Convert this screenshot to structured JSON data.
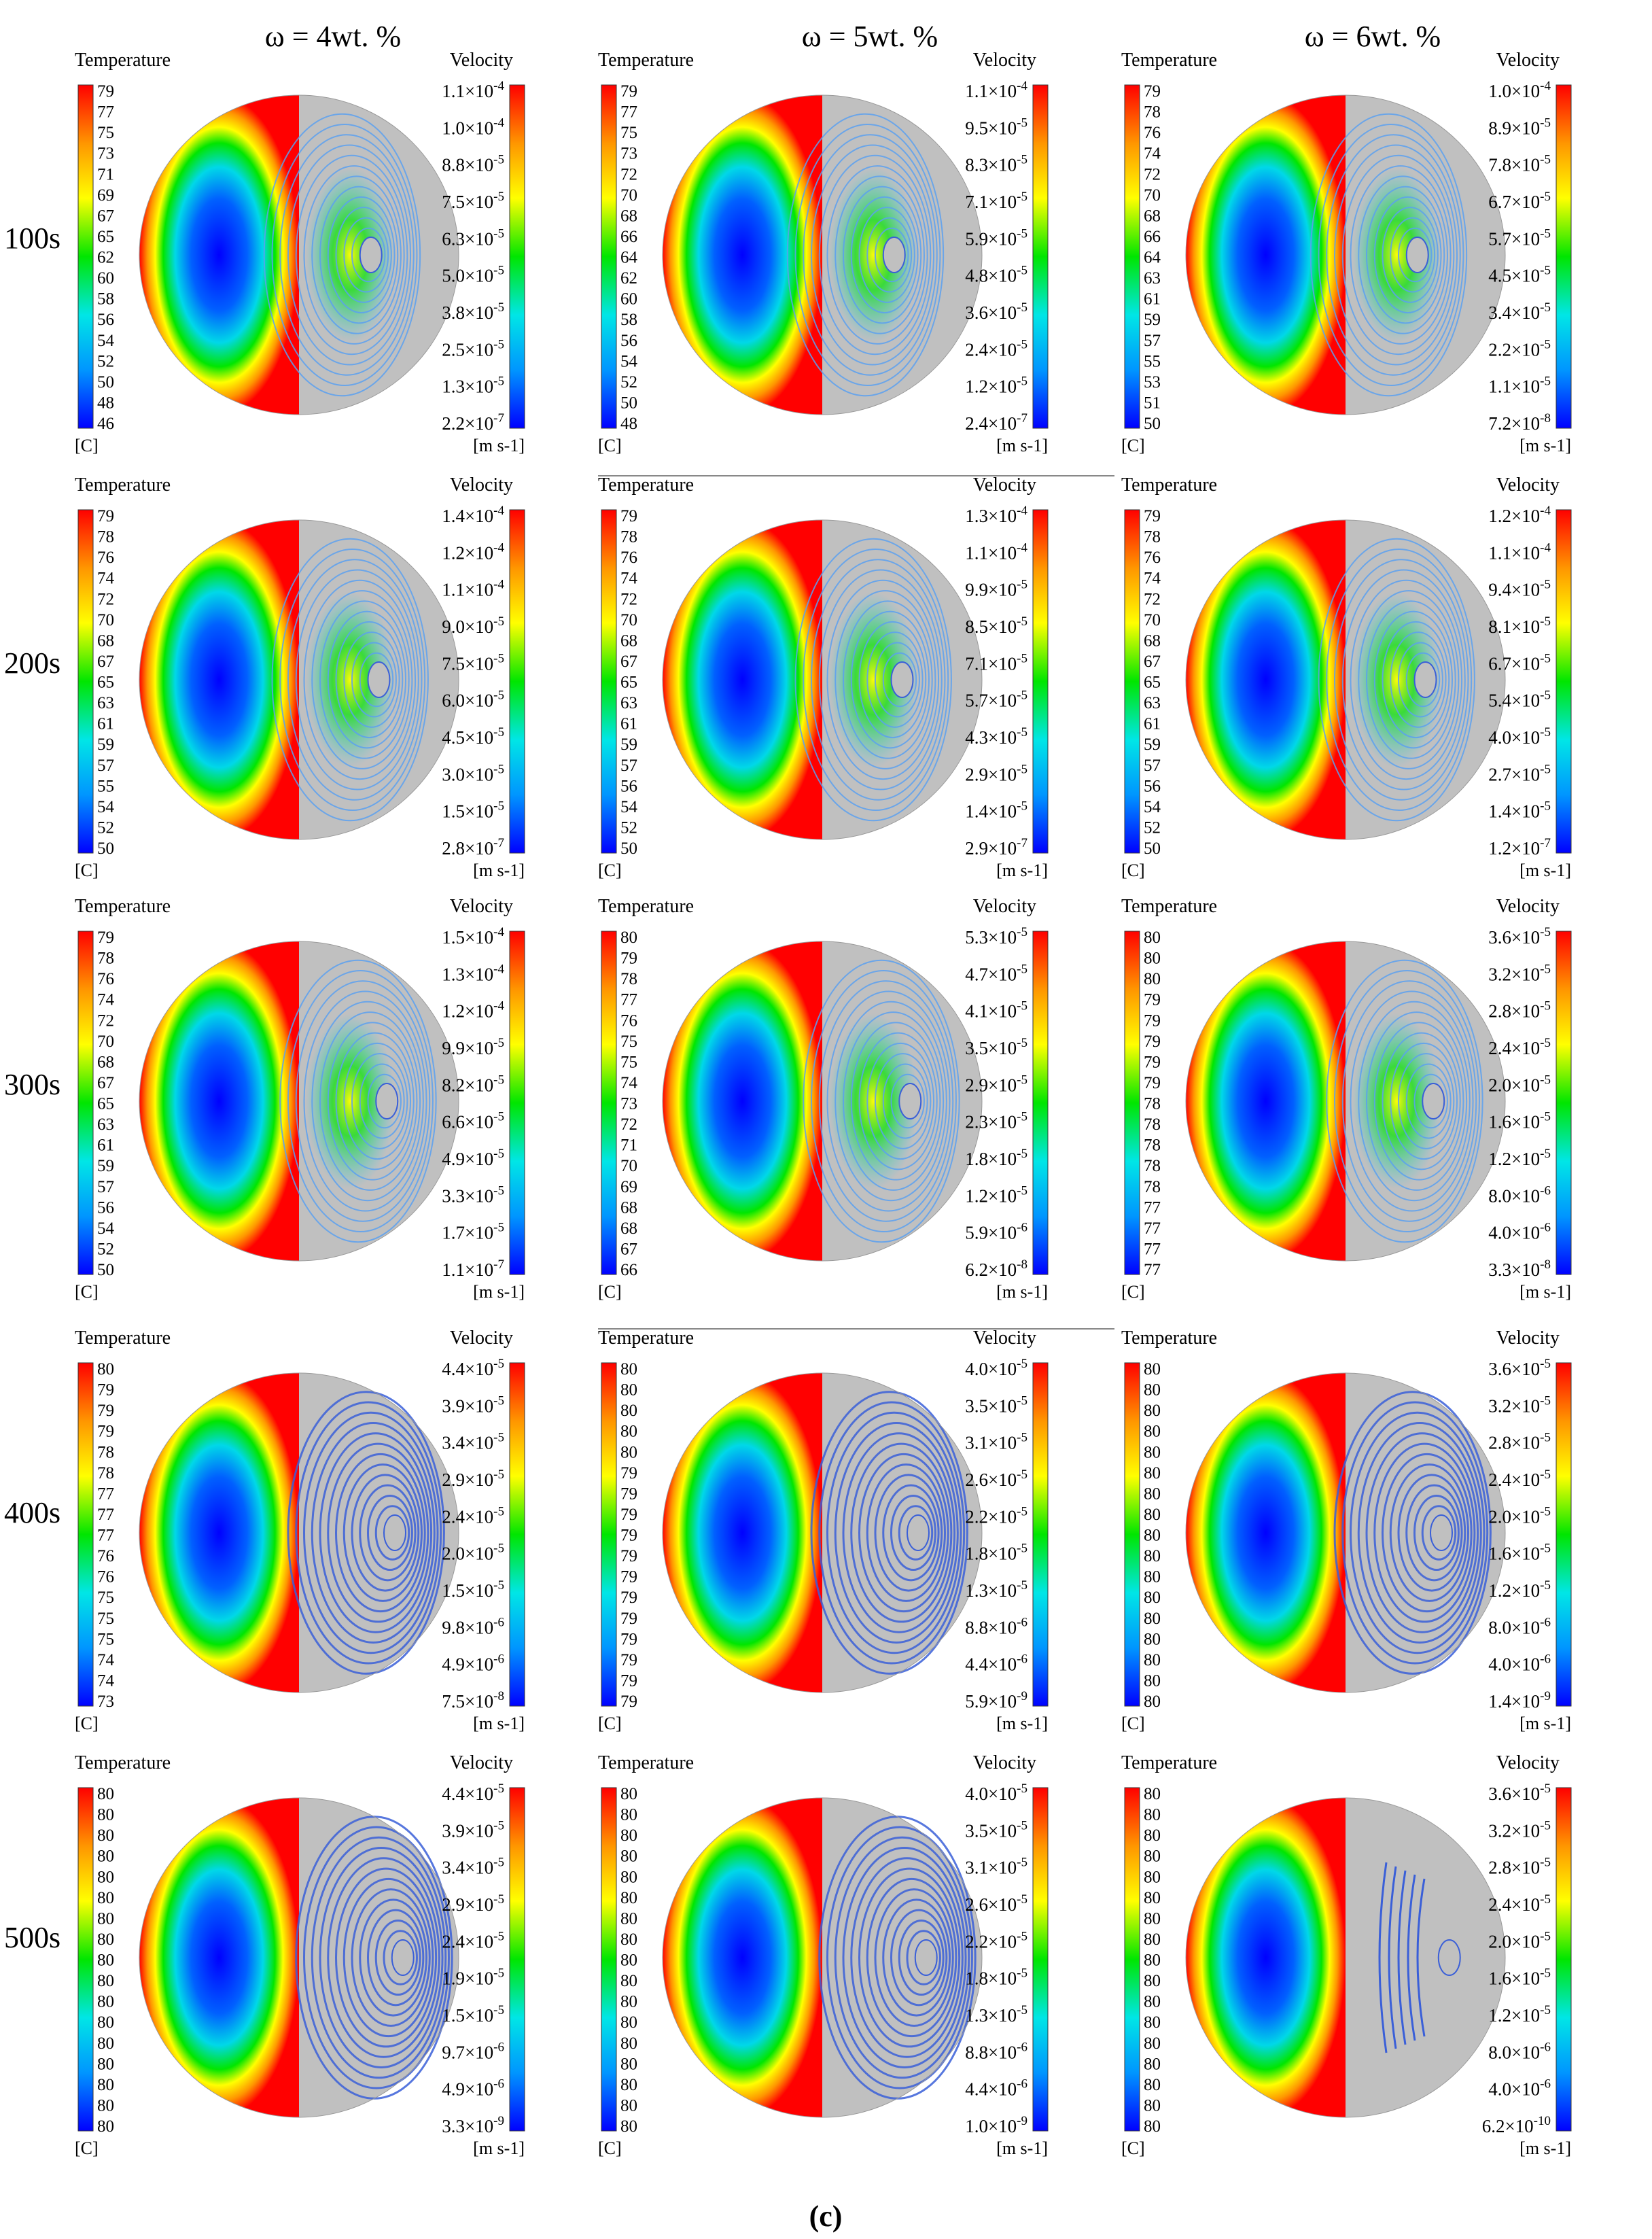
{
  "figure_label": "(c)",
  "columns": [
    {
      "label": "ω = 4wt. %"
    },
    {
      "label": "ω = 5wt. %"
    },
    {
      "label": "ω = 6wt. %"
    }
  ],
  "rows": [
    {
      "time": "100s"
    },
    {
      "time": "200s"
    },
    {
      "time": "300s"
    },
    {
      "time": "400s"
    },
    {
      "time": "500s"
    }
  ],
  "legend_text": {
    "temperature_title": "Temperature",
    "temperature_unit": "[C]",
    "velocity_title": "Velocity",
    "velocity_unit": "[m s-1]"
  },
  "colors": {
    "streamline_fill": "#c0c0c0",
    "streamline_line": "#3a5fd8",
    "colormap": [
      "#0000ff",
      "#0096ff",
      "#00e6e6",
      "#00e600",
      "#ffff00",
      "#ff9600",
      "#ff0000"
    ]
  },
  "panels": [
    [
      {
        "temp_ticks": [
          "79",
          "77",
          "75",
          "73",
          "71",
          "69",
          "67",
          "65",
          "62",
          "60",
          "58",
          "56",
          "54",
          "52",
          "50",
          "48",
          "46"
        ],
        "vel_ticks": [
          "1.1×10-4",
          "1.0×10-4",
          "8.8×10-5",
          "7.5×10-5",
          "6.3×10-5",
          "5.0×10-5",
          "3.8×10-5",
          "2.5×10-5",
          "1.3×10-5",
          "2.2×10-7"
        ]
      },
      {
        "temp_ticks": [
          "79",
          "77",
          "75",
          "73",
          "72",
          "70",
          "68",
          "66",
          "64",
          "62",
          "60",
          "58",
          "56",
          "54",
          "52",
          "50",
          "48"
        ],
        "vel_ticks": [
          "1.1×10-4",
          "9.5×10-5",
          "8.3×10-5",
          "7.1×10-5",
          "5.9×10-5",
          "4.8×10-5",
          "3.6×10-5",
          "2.4×10-5",
          "1.2×10-5",
          "2.4×10-7"
        ]
      },
      {
        "temp_ticks": [
          "79",
          "78",
          "76",
          "74",
          "72",
          "70",
          "68",
          "66",
          "64",
          "63",
          "61",
          "59",
          "57",
          "55",
          "53",
          "51",
          "50"
        ],
        "vel_ticks": [
          "1.0×10-4",
          "8.9×10-5",
          "7.8×10-5",
          "6.7×10-5",
          "5.7×10-5",
          "4.5×10-5",
          "3.4×10-5",
          "2.2×10-5",
          "1.1×10-5",
          "7.2×10-8"
        ]
      }
    ],
    [
      {
        "temp_ticks": [
          "79",
          "78",
          "76",
          "74",
          "72",
          "70",
          "68",
          "67",
          "65",
          "63",
          "61",
          "59",
          "57",
          "55",
          "54",
          "52",
          "50"
        ],
        "vel_ticks": [
          "1.4×10-4",
          "1.2×10-4",
          "1.1×10-4",
          "9.0×10-5",
          "7.5×10-5",
          "6.0×10-5",
          "4.5×10-5",
          "3.0×10-5",
          "1.5×10-5",
          "2.8×10-7"
        ]
      },
      {
        "temp_ticks": [
          "79",
          "78",
          "76",
          "74",
          "72",
          "70",
          "68",
          "67",
          "65",
          "63",
          "61",
          "59",
          "57",
          "56",
          "54",
          "52",
          "50"
        ],
        "vel_ticks": [
          "1.3×10-4",
          "1.1×10-4",
          "9.9×10-5",
          "8.5×10-5",
          "7.1×10-5",
          "5.7×10-5",
          "4.3×10-5",
          "2.9×10-5",
          "1.4×10-5",
          "2.9×10-7"
        ]
      },
      {
        "temp_ticks": [
          "79",
          "78",
          "76",
          "74",
          "72",
          "70",
          "68",
          "67",
          "65",
          "63",
          "61",
          "59",
          "57",
          "56",
          "54",
          "52",
          "50"
        ],
        "vel_ticks": [
          "1.2×10-4",
          "1.1×10-4",
          "9.4×10-5",
          "8.1×10-5",
          "6.7×10-5",
          "5.4×10-5",
          "4.0×10-5",
          "2.7×10-5",
          "1.4×10-5",
          "1.2×10-7"
        ]
      }
    ],
    [
      {
        "temp_ticks": [
          "79",
          "78",
          "76",
          "74",
          "72",
          "70",
          "68",
          "67",
          "65",
          "63",
          "61",
          "59",
          "57",
          "56",
          "54",
          "52",
          "50"
        ],
        "vel_ticks": [
          "1.5×10-4",
          "1.3×10-4",
          "1.2×10-4",
          "9.9×10-5",
          "8.2×10-5",
          "6.6×10-5",
          "4.9×10-5",
          "3.3×10-5",
          "1.7×10-5",
          "1.1×10-7"
        ]
      },
      {
        "temp_ticks": [
          "80",
          "79",
          "78",
          "77",
          "76",
          "75",
          "75",
          "74",
          "73",
          "72",
          "71",
          "70",
          "69",
          "68",
          "68",
          "67",
          "66"
        ],
        "vel_ticks": [
          "5.3×10-5",
          "4.7×10-5",
          "4.1×10-5",
          "3.5×10-5",
          "2.9×10-5",
          "2.3×10-5",
          "1.8×10-5",
          "1.2×10-5",
          "5.9×10-6",
          "6.2×10-8"
        ]
      },
      {
        "temp_ticks": [
          "80",
          "80",
          "80",
          "79",
          "79",
          "79",
          "79",
          "79",
          "78",
          "78",
          "78",
          "78",
          "78",
          "77",
          "77",
          "77",
          "77"
        ],
        "vel_ticks": [
          "3.6×10-5",
          "3.2×10-5",
          "2.8×10-5",
          "2.4×10-5",
          "2.0×10-5",
          "1.6×10-5",
          "1.2×10-5",
          "8.0×10-6",
          "4.0×10-6",
          "3.3×10-8"
        ]
      }
    ],
    [
      {
        "temp_ticks": [
          "80",
          "79",
          "79",
          "79",
          "78",
          "78",
          "77",
          "77",
          "77",
          "76",
          "76",
          "75",
          "75",
          "75",
          "74",
          "74",
          "73"
        ],
        "vel_ticks": [
          "4.4×10-5",
          "3.9×10-5",
          "3.4×10-5",
          "2.9×10-5",
          "2.4×10-5",
          "2.0×10-5",
          "1.5×10-5",
          "9.8×10-6",
          "4.9×10-6",
          "7.5×10-8"
        ]
      },
      {
        "temp_ticks": [
          "80",
          "80",
          "80",
          "80",
          "80",
          "79",
          "79",
          "79",
          "79",
          "79",
          "79",
          "79",
          "79",
          "79",
          "79",
          "79",
          "79"
        ],
        "vel_ticks": [
          "4.0×10-5",
          "3.5×10-5",
          "3.1×10-5",
          "2.6×10-5",
          "2.2×10-5",
          "1.8×10-5",
          "1.3×10-5",
          "8.8×10-6",
          "4.4×10-6",
          "5.9×10-9"
        ]
      },
      {
        "temp_ticks": [
          "80",
          "80",
          "80",
          "80",
          "80",
          "80",
          "80",
          "80",
          "80",
          "80",
          "80",
          "80",
          "80",
          "80",
          "80",
          "80",
          "80"
        ],
        "vel_ticks": [
          "3.6×10-5",
          "3.2×10-5",
          "2.8×10-5",
          "2.4×10-5",
          "2.0×10-5",
          "1.6×10-5",
          "1.2×10-5",
          "8.0×10-6",
          "4.0×10-6",
          "1.4×10-9"
        ]
      }
    ],
    [
      {
        "temp_ticks": [
          "80",
          "80",
          "80",
          "80",
          "80",
          "80",
          "80",
          "80",
          "80",
          "80",
          "80",
          "80",
          "80",
          "80",
          "80",
          "80",
          "80"
        ],
        "vel_ticks": [
          "4.4×10-5",
          "3.9×10-5",
          "3.4×10-5",
          "2.9×10-5",
          "2.4×10-5",
          "1.9×10-5",
          "1.5×10-5",
          "9.7×10-6",
          "4.9×10-6",
          "3.3×10-9"
        ]
      },
      {
        "temp_ticks": [
          "80",
          "80",
          "80",
          "80",
          "80",
          "80",
          "80",
          "80",
          "80",
          "80",
          "80",
          "80",
          "80",
          "80",
          "80",
          "80",
          "80"
        ],
        "vel_ticks": [
          "4.0×10-5",
          "3.5×10-5",
          "3.1×10-5",
          "2.6×10-5",
          "2.2×10-5",
          "1.8×10-5",
          "1.3×10-5",
          "8.8×10-6",
          "4.4×10-6",
          "1.0×10-9"
        ]
      },
      {
        "temp_ticks": [
          "80",
          "80",
          "80",
          "80",
          "80",
          "80",
          "80",
          "80",
          "80",
          "80",
          "80",
          "80",
          "80",
          "80",
          "80",
          "80",
          "80"
        ],
        "vel_ticks": [
          "3.6×10-5",
          "3.2×10-5",
          "2.8×10-5",
          "2.4×10-5",
          "2.0×10-5",
          "1.6×10-5",
          "1.2×10-5",
          "8.0×10-6",
          "4.0×10-6",
          "6.2×10-10"
        ]
      }
    ]
  ]
}
